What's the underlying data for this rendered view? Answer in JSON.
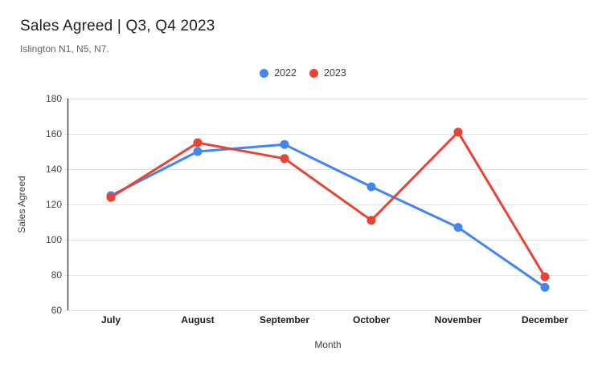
{
  "chart_data": {
    "type": "line",
    "title": "Sales Agreed | Q3, Q4 2023",
    "subtitle": "Islington N1, N5, N7.",
    "categories": [
      "July",
      "August",
      "September",
      "October",
      "November",
      "December"
    ],
    "series": [
      {
        "name": "2022",
        "color": "#4285f4",
        "values": [
          125,
          150,
          154,
          130,
          107,
          73
        ]
      },
      {
        "name": "2023",
        "color": "#ea4335",
        "values": [
          124,
          155,
          146,
          111,
          161,
          79
        ]
      }
    ],
    "xlabel": "Month",
    "ylabel": "Sales Agreed",
    "ylim": [
      60,
      180
    ],
    "yticks": [
      60,
      80,
      100,
      120,
      140,
      160,
      180
    ],
    "grid": true,
    "legend_position": "top",
    "gridline_color": "#e3e3e3",
    "axis_line_color": "#333333",
    "marker_radius": 5.5,
    "line_width": 3
  }
}
